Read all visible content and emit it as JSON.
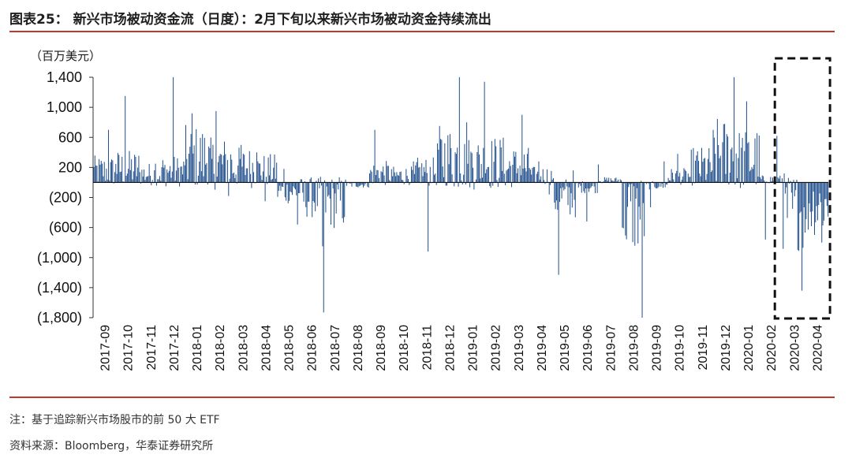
{
  "header": {
    "title": "图表25： 新兴市场被动资金流（日度）：2月下旬以来新兴市场被动资金持续流出"
  },
  "footer": {
    "note": "注：基于追踪新兴市场股市的前 50 大 ETF",
    "source": "资料来源：Bloomberg，华泰证券研究所"
  },
  "colors": {
    "bar": "#1f4e8c",
    "rule": "#c0392b",
    "highlight_box": "#111111"
  },
  "chart_data": {
    "type": "bar",
    "unit_label": "（百万美元）",
    "ylim": [
      -1800,
      1400
    ],
    "yticks": [
      1400,
      1000,
      600,
      200,
      -200,
      -600,
      -1000,
      -1400,
      -1800
    ],
    "ytick_labels": [
      "1,400",
      "1,000",
      "600",
      "200",
      "(200)",
      "(600)",
      "(1,000)",
      "(1,400)",
      "(1,800)"
    ],
    "x_tick_labels": [
      "2017-09",
      "2017-10",
      "2017-11",
      "2017-12",
      "2018-01",
      "2018-02",
      "2018-03",
      "2018-04",
      "2018-05",
      "2018-06",
      "2018-07",
      "2018-08",
      "2018-09",
      "2018-10",
      "2018-11",
      "2018-12",
      "2019-01",
      "2019-02",
      "2019-03",
      "2019-04",
      "2019-05",
      "2019-06",
      "2019-07",
      "2019-08",
      "2019-09",
      "2019-10",
      "2019-11",
      "2019-12",
      "2020-01",
      "2020-02",
      "2020-03",
      "2020-04"
    ],
    "highlight": {
      "from": "2020-02-24",
      "to": "2020-04-30"
    },
    "monthly_pattern": [
      {
        "month": "2017-09",
        "max": 700,
        "min": -20,
        "typical": 150
      },
      {
        "month": "2017-10",
        "max": 1150,
        "min": -30,
        "typical": 180
      },
      {
        "month": "2017-11",
        "max": 250,
        "min": -60,
        "typical": 110
      },
      {
        "month": "2017-12",
        "max": 1400,
        "min": -120,
        "typical": 150
      },
      {
        "month": "2018-01",
        "max": 920,
        "min": -40,
        "typical": 320
      },
      {
        "month": "2018-02",
        "max": 950,
        "min": -180,
        "typical": 250
      },
      {
        "month": "2018-03",
        "max": 500,
        "min": -80,
        "typical": 200
      },
      {
        "month": "2018-04",
        "max": 400,
        "min": -250,
        "typical": 160
      },
      {
        "month": "2018-05",
        "max": 180,
        "min": -560,
        "typical": -120
      },
      {
        "month": "2018-06",
        "max": 120,
        "min": -850,
        "typical": -200
      },
      {
        "month": "2018-07",
        "max": 80,
        "min": -1730,
        "typical": -260
      },
      {
        "month": "2018-08",
        "max": 60,
        "min": -120,
        "typical": -30
      },
      {
        "month": "2018-09",
        "max": 700,
        "min": -60,
        "typical": 120
      },
      {
        "month": "2018-10",
        "max": 280,
        "min": -100,
        "typical": 90
      },
      {
        "month": "2018-11",
        "max": 520,
        "min": -920,
        "typical": 140
      },
      {
        "month": "2018-12",
        "max": 1400,
        "min": -60,
        "typical": 320
      },
      {
        "month": "2019-01",
        "max": 800,
        "min": -100,
        "typical": 260
      },
      {
        "month": "2019-02",
        "max": 1340,
        "min": -120,
        "typical": 260
      },
      {
        "month": "2019-03",
        "max": 900,
        "min": -140,
        "typical": 200
      },
      {
        "month": "2019-04",
        "max": 280,
        "min": -160,
        "typical": 90
      },
      {
        "month": "2019-05",
        "max": 160,
        "min": -1230,
        "typical": -200
      },
      {
        "month": "2019-06",
        "max": 240,
        "min": -520,
        "typical": -60
      },
      {
        "month": "2019-07",
        "max": 120,
        "min": -100,
        "typical": 30
      },
      {
        "month": "2019-08",
        "max": 30,
        "min": -1800,
        "typical": -400
      },
      {
        "month": "2019-09",
        "max": 280,
        "min": -330,
        "typical": -40
      },
      {
        "month": "2019-10",
        "max": 380,
        "min": -80,
        "typical": 80
      },
      {
        "month": "2019-11",
        "max": 700,
        "min": -60,
        "typical": 200
      },
      {
        "month": "2019-12",
        "max": 1400,
        "min": -40,
        "typical": 360
      },
      {
        "month": "2020-01",
        "max": 1080,
        "min": -80,
        "typical": 300
      },
      {
        "month": "2020-02",
        "max": 620,
        "min": -760,
        "typical": 40
      },
      {
        "month": "2020-03",
        "max": 120,
        "min": -1440,
        "typical": -380
      },
      {
        "month": "2020-04",
        "max": 60,
        "min": -800,
        "typical": -300
      }
    ]
  }
}
